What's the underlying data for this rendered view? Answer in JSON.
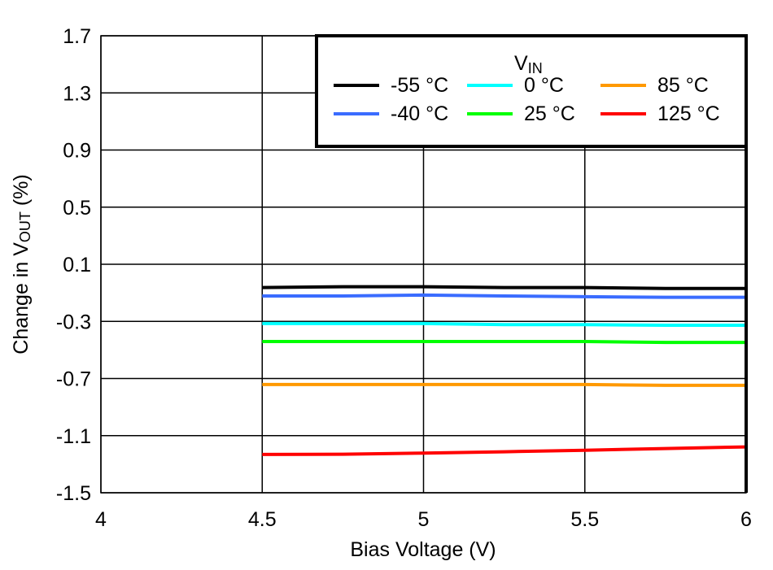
{
  "chart_data": {
    "type": "line",
    "xlabel": "Bias Voltage (V)",
    "ylabel": {
      "prefix": "Change in V",
      "sub": "OUT",
      "suffix": " (%)"
    },
    "xlim": [
      4,
      6
    ],
    "ylim": [
      -1.5,
      1.7
    ],
    "xticks": [
      "4",
      "4.5",
      "5",
      "5.5",
      "6"
    ],
    "yticks": [
      "1.7",
      "1.3",
      "0.9",
      "0.5",
      "0.1",
      "-0.3",
      "-0.7",
      "-1.1",
      "-1.5"
    ],
    "grid": true,
    "legend": {
      "title_main": "V",
      "title_sub": "IN",
      "placement": "top-right"
    },
    "x": [
      4.5,
      4.75,
      5.0,
      5.25,
      5.5,
      5.75,
      6.0
    ],
    "series": [
      {
        "name": "-55 °C",
        "color": "#000000",
        "values": [
          -0.063,
          -0.057,
          -0.057,
          -0.063,
          -0.063,
          -0.069,
          -0.069
        ]
      },
      {
        "name": "-40 °C",
        "color": "#3a6cff",
        "values": [
          -0.122,
          -0.122,
          -0.116,
          -0.122,
          -0.127,
          -0.131,
          -0.131
        ]
      },
      {
        "name": "0 °C",
        "color": "#00ffff",
        "values": [
          -0.315,
          -0.315,
          -0.315,
          -0.323,
          -0.323,
          -0.327,
          -0.327
        ]
      },
      {
        "name": "25 °C",
        "color": "#00ff00",
        "values": [
          -0.441,
          -0.441,
          -0.441,
          -0.441,
          -0.441,
          -0.447,
          -0.447
        ]
      },
      {
        "name": "85 °C",
        "color": "#ff9900",
        "values": [
          -0.742,
          -0.742,
          -0.742,
          -0.742,
          -0.742,
          -0.748,
          -0.748
        ]
      },
      {
        "name": "125 °C",
        "color": "#ff0000",
        "values": [
          -1.232,
          -1.23,
          -1.222,
          -1.213,
          -1.202,
          -1.19,
          -1.179
        ]
      }
    ]
  }
}
